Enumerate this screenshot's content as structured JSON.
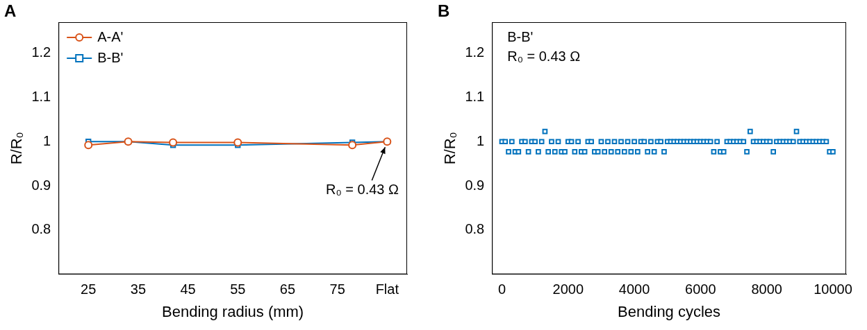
{
  "chart_data": [
    {
      "type": "line",
      "panel_label": "A",
      "x_label": "Bending radius (mm)",
      "y_label": "R/R₀",
      "x": [
        25,
        33,
        42,
        55,
        78,
        85
      ],
      "xlim": [
        19,
        89
      ],
      "xticks": [
        25,
        35,
        45,
        55,
        65,
        75,
        {
          "value": 85,
          "label": "Flat"
        }
      ],
      "ylim": [
        0.7,
        1.27
      ],
      "yticks": [
        0.8,
        0.9,
        1,
        1.1,
        1.2
      ],
      "grid": false,
      "legend": "upper left",
      "annotations": [
        "R₀ = 0.43 Ω"
      ],
      "series": [
        {
          "name": "A-A'",
          "color": "#d95319",
          "marker": "circle",
          "line_style": "solid",
          "values": [
            0.992,
            1.0,
            0.998,
            0.998,
            0.992,
            1.0
          ]
        },
        {
          "name": "B-B'",
          "color": "#0072bd",
          "marker": "square",
          "line_style": "solid",
          "values": [
            1.0,
            1.0,
            0.992,
            0.992,
            0.998,
            1.0
          ]
        }
      ]
    },
    {
      "type": "scatter",
      "panel_label": "B",
      "x_label": "Bending cycles",
      "y_label": "R/R₀",
      "x": [
        0,
        100,
        200,
        300,
        400,
        500,
        600,
        700,
        800,
        900,
        1000,
        1100,
        1200,
        1300,
        1400,
        1500,
        1600,
        1700,
        1800,
        1900,
        2000,
        2100,
        2200,
        2300,
        2400,
        2500,
        2600,
        2700,
        2800,
        2900,
        3000,
        3100,
        3200,
        3300,
        3400,
        3500,
        3600,
        3700,
        3800,
        3900,
        4000,
        4100,
        4200,
        4300,
        4400,
        4500,
        4600,
        4700,
        4800,
        4900,
        5000,
        5100,
        5200,
        5300,
        5400,
        5500,
        5600,
        5700,
        5800,
        5900,
        6000,
        6100,
        6200,
        6300,
        6400,
        6500,
        6600,
        6700,
        6800,
        6900,
        7000,
        7100,
        7200,
        7300,
        7400,
        7500,
        7600,
        7700,
        7800,
        7900,
        8000,
        8100,
        8200,
        8300,
        8400,
        8500,
        8600,
        8700,
        8800,
        8900,
        9000,
        9100,
        9200,
        9300,
        9400,
        9500,
        9600,
        9700,
        9800,
        9900,
        10000
      ],
      "xlim": [
        -300,
        10400
      ],
      "xticks": [
        0,
        2000,
        4000,
        6000,
        8000,
        10000
      ],
      "ylim": [
        0.7,
        1.27
      ],
      "yticks": [
        0.8,
        0.9,
        1,
        1.1,
        1.2
      ],
      "grid": false,
      "annotations": [
        "B-B'",
        "R₀ = 0.43 Ω"
      ],
      "series": [
        {
          "color": "#0072bd",
          "marker": "square",
          "line_style": "none",
          "values": [
            1,
            1,
            0.977,
            1,
            0.977,
            0.977,
            1,
            1,
            0.977,
            1,
            1,
            0.977,
            1,
            1.023,
            0.977,
            1,
            0.977,
            1,
            0.977,
            0.977,
            1,
            1,
            0.977,
            1,
            0.977,
            0.977,
            1,
            1,
            0.977,
            0.977,
            1,
            0.977,
            1,
            0.977,
            1,
            0.977,
            1,
            0.977,
            1,
            0.977,
            1,
            0.977,
            1,
            1,
            0.977,
            1,
            0.977,
            1,
            1,
            0.977,
            1,
            1,
            1,
            1,
            1,
            1,
            1,
            1,
            1,
            1,
            1,
            1,
            1,
            1,
            0.977,
            1,
            0.977,
            0.977,
            1,
            1,
            1,
            1,
            1,
            1,
            0.977,
            1.023,
            1,
            1,
            1,
            1,
            1,
            1,
            0.977,
            1,
            1,
            1,
            1,
            1,
            1,
            1.023,
            1,
            1,
            1,
            1,
            1,
            1,
            1,
            1,
            1,
            0.977,
            0.977
          ]
        }
      ]
    }
  ]
}
